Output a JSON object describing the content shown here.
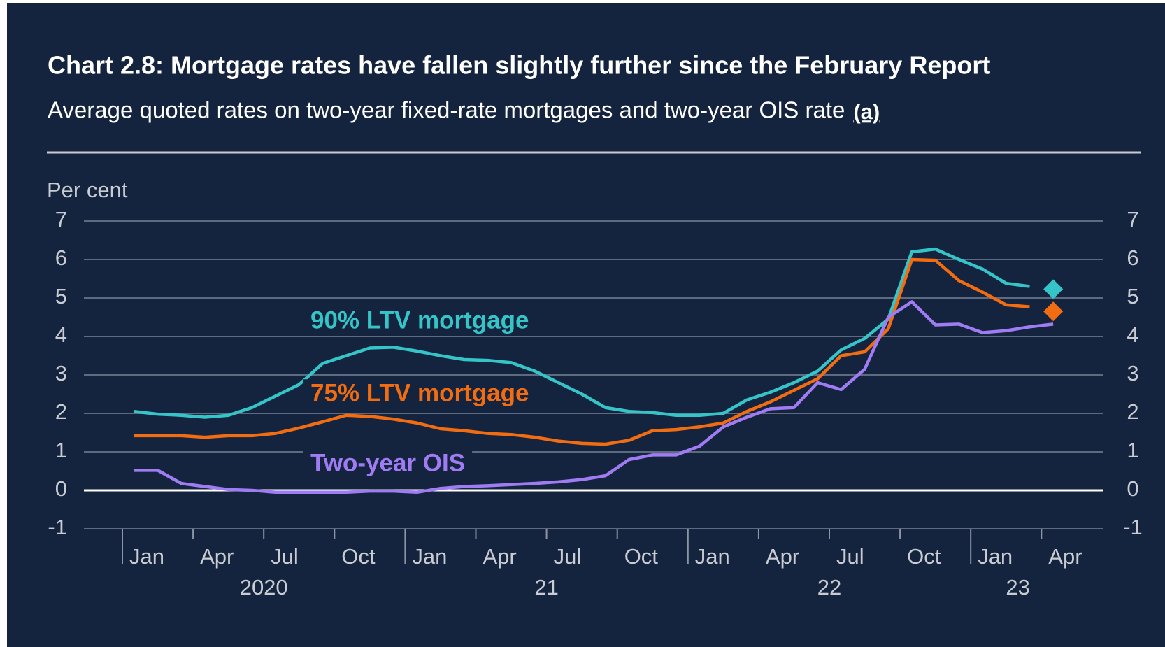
{
  "chart_data": {
    "type": "line",
    "title": "Chart 2.8: Mortgage rates have fallen slightly further since the February Report",
    "subtitle": "Average quoted rates on two-year fixed-rate mortgages and two-year OIS rate",
    "footnote_marker": "(a)",
    "y_label": "Per cent",
    "categories": [
      "Jan",
      null,
      null,
      "Apr",
      null,
      null,
      "Jul",
      null,
      null,
      "Oct",
      null,
      null,
      "Jan",
      null,
      null,
      "Apr",
      null,
      null,
      "Jul",
      null,
      null,
      "Oct",
      null,
      null,
      "Jan",
      null,
      null,
      "Apr",
      null,
      null,
      "Jul",
      null,
      null,
      "Oct",
      null,
      null,
      "Jan",
      null,
      null,
      "Apr"
    ],
    "year_groups": [
      "2020",
      "21",
      "22",
      "23"
    ],
    "ylim": [
      -1,
      7
    ],
    "yticks": [
      -1,
      0,
      1,
      2,
      3,
      4,
      5,
      6,
      7
    ],
    "grid": true,
    "series": [
      {
        "name": "90% LTV mortgage",
        "color": "#35c5c8",
        "latest": 5.23,
        "values": [
          2.05,
          1.98,
          1.95,
          1.9,
          1.95,
          2.15,
          2.45,
          2.75,
          3.3,
          3.5,
          3.7,
          3.72,
          3.62,
          3.5,
          3.4,
          3.38,
          3.32,
          3.1,
          2.8,
          2.5,
          2.15,
          2.05,
          2.02,
          1.95,
          1.95,
          2.0,
          2.35,
          2.55,
          2.8,
          3.1,
          3.65,
          3.95,
          4.45,
          6.2,
          6.27,
          6.0,
          5.75,
          5.38,
          5.3,
          null
        ]
      },
      {
        "name": "75% LTV mortgage",
        "color": "#f26c12",
        "latest": 4.65,
        "values": [
          1.42,
          1.42,
          1.42,
          1.38,
          1.42,
          1.42,
          1.48,
          1.62,
          1.78,
          1.95,
          1.92,
          1.85,
          1.75,
          1.6,
          1.55,
          1.48,
          1.45,
          1.38,
          1.28,
          1.22,
          1.2,
          1.3,
          1.55,
          1.58,
          1.65,
          1.75,
          2.05,
          2.3,
          2.6,
          2.9,
          3.5,
          3.6,
          4.2,
          6.0,
          5.98,
          5.45,
          5.15,
          4.82,
          4.77,
          null
        ]
      },
      {
        "name": "Two-year OIS",
        "color": "#a07cf4",
        "values": [
          0.52,
          0.52,
          0.18,
          0.1,
          0.02,
          0,
          -0.05,
          -0.05,
          -0.05,
          -0.05,
          -0.02,
          -0.02,
          -0.05,
          0.05,
          0.1,
          0.12,
          0.15,
          0.18,
          0.22,
          0.28,
          0.38,
          0.8,
          0.92,
          0.92,
          1.15,
          1.65,
          1.9,
          2.12,
          2.15,
          2.8,
          2.62,
          3.15,
          4.5,
          4.9,
          4.3,
          4.32,
          4.1,
          4.15,
          4.25,
          4.32
        ]
      }
    ]
  }
}
